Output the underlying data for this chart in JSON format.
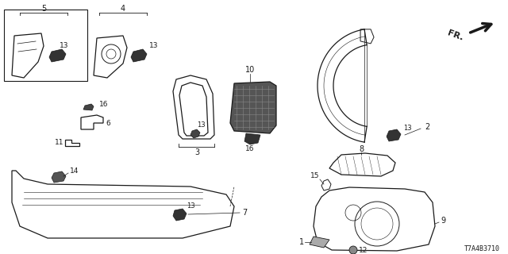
{
  "diagram_id": "T7A4B3710",
  "bg_color": "#ffffff",
  "line_color": "#1a1a1a",
  "fig_width": 6.4,
  "fig_height": 3.2,
  "dpi": 100
}
